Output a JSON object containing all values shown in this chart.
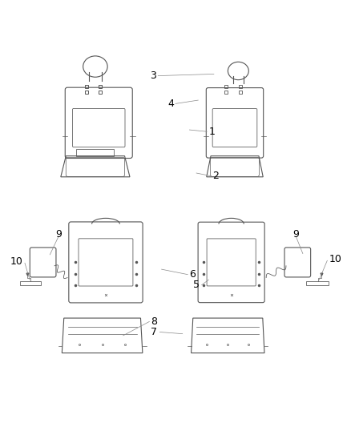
{
  "background_color": "#ffffff",
  "line_color": "#555555",
  "label_color": "#000000",
  "label_fontsize": 9,
  "fig_width": 4.38,
  "fig_height": 5.33,
  "dpi": 100
}
